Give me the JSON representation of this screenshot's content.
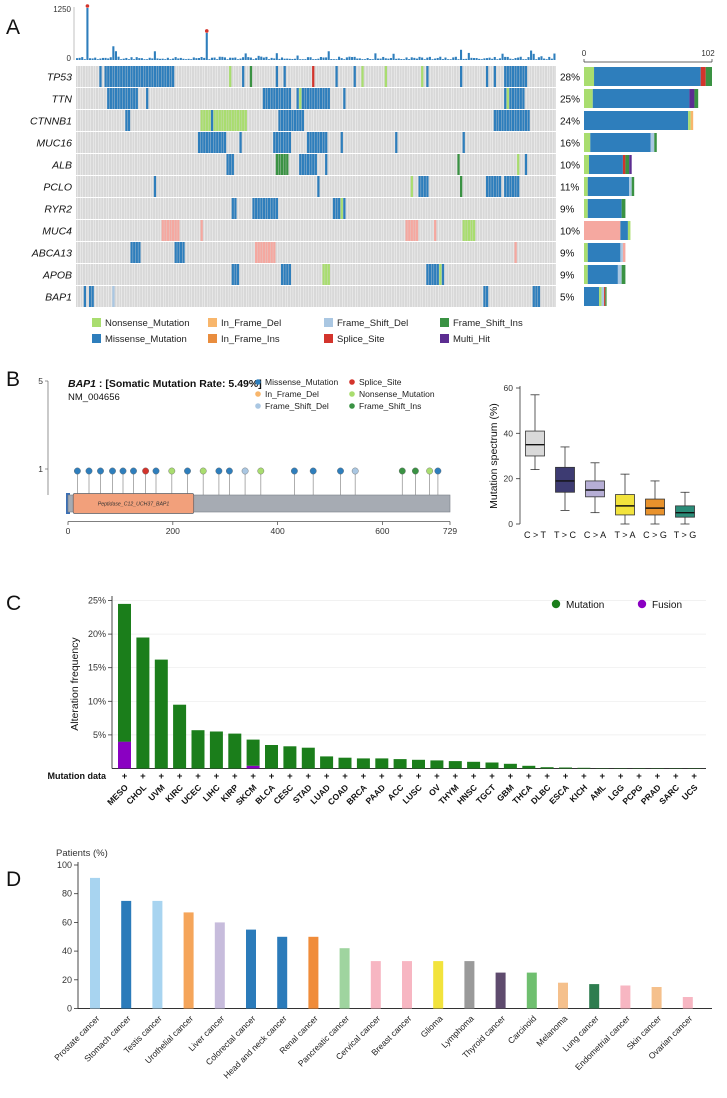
{
  "panel_labels": {
    "a": "A",
    "b": "B",
    "c": "C",
    "d": "D"
  },
  "mut_colors": {
    "missense": "#2e7ebc",
    "nonsense": "#a9dd6f",
    "inframe_del": "#f8b66c",
    "inframe_ins": "#e98d3e",
    "frameshift_del": "#aac7e2",
    "frameshift_ins": "#3a9243",
    "splice": "#d3342c",
    "multi": "#5c2d91",
    "salmon": "#f5a8a0"
  },
  "chart_data": [
    {
      "name": "tmb_per_sample",
      "type": "bar",
      "ylim": [
        0,
        1250
      ],
      "ylabel_ticks": [
        "1250",
        "0"
      ],
      "n_samples": 185,
      "bar_color": "#2e7ebc",
      "seed": 11,
      "spikes": [
        {
          "i": 4,
          "v": 1250,
          "dot": "#d3342c"
        },
        {
          "i": 14,
          "v": 330
        },
        {
          "i": 50,
          "v": 650,
          "dot": "#d3342c"
        },
        {
          "i": 97,
          "v": 210
        },
        {
          "i": 122,
          "v": 150
        },
        {
          "i": 151,
          "v": 170
        }
      ]
    },
    {
      "name": "oncoprint",
      "type": "heatmap",
      "background": "#d8d8d8",
      "right_axis": {
        "ticks": [
          "0",
          "102"
        ],
        "max": 102
      },
      "genes": [
        {
          "gene": "TP53",
          "percent": "28%",
          "pct": 28,
          "mix": [
            [
              "nonsense",
              8
            ],
            [
              "missense",
              85
            ],
            [
              "splice",
              4
            ],
            [
              "frameshift_ins",
              5
            ]
          ]
        },
        {
          "gene": "TTN",
          "percent": "25%",
          "pct": 25,
          "mix": [
            [
              "nonsense",
              7
            ],
            [
              "missense",
              77
            ],
            [
              "multi",
              4
            ],
            [
              "frameshift_ins",
              3
            ]
          ]
        },
        {
          "gene": "CTNNB1",
          "percent": "24%",
          "pct": 24,
          "mix": [
            [
              "missense",
              83
            ],
            [
              "nonsense",
              2
            ],
            [
              "inframe_del",
              2
            ]
          ]
        },
        {
          "gene": "MUC16",
          "percent": "16%",
          "pct": 16,
          "mix": [
            [
              "nonsense",
              5
            ],
            [
              "missense",
              48
            ],
            [
              "frameshift_del",
              3
            ],
            [
              "frameshift_ins",
              2
            ]
          ]
        },
        {
          "gene": "ALB",
          "percent": "10%",
          "pct": 10,
          "mix": [
            [
              "nonsense",
              4
            ],
            [
              "missense",
              27
            ],
            [
              "splice",
              2
            ],
            [
              "frameshift_ins",
              3
            ],
            [
              "multi",
              2
            ]
          ]
        },
        {
          "gene": "PCLO",
          "percent": "11%",
          "pct": 11,
          "mix": [
            [
              "nonsense",
              3
            ],
            [
              "missense",
              33
            ],
            [
              "frameshift_del",
              2
            ],
            [
              "frameshift_ins",
              2
            ]
          ]
        },
        {
          "gene": "RYR2",
          "percent": "9%",
          "pct": 9,
          "mix": [
            [
              "nonsense",
              3
            ],
            [
              "missense",
              27
            ],
            [
              "frameshift_ins",
              3
            ]
          ]
        },
        {
          "gene": "MUC4",
          "percent": "10%",
          "pct": 10,
          "mix": [
            [
              "salmon",
              29
            ],
            [
              "missense",
              6
            ],
            [
              "nonsense",
              2
            ]
          ]
        },
        {
          "gene": "ABCA13",
          "percent": "9%",
          "pct": 9,
          "mix": [
            [
              "nonsense",
              3
            ],
            [
              "missense",
              26
            ],
            [
              "frameshift_del",
              2
            ],
            [
              "salmon",
              2
            ]
          ]
        },
        {
          "gene": "APOB",
          "percent": "9%",
          "pct": 9,
          "mix": [
            [
              "nonsense",
              3
            ],
            [
              "missense",
              24
            ],
            [
              "frameshift_del",
              3
            ],
            [
              "frameshift_ins",
              3
            ]
          ]
        },
        {
          "gene": "BAP1",
          "percent": "5%",
          "pct": 5,
          "mix": [
            [
              "missense",
              12
            ],
            [
              "nonsense",
              2
            ],
            [
              "frameshift_del",
              2
            ],
            [
              "splice",
              1
            ],
            [
              "frameshift_ins",
              1
            ]
          ]
        }
      ],
      "legend_rows": [
        [
          {
            "label": "Nonsense_Mutation",
            "key": "nonsense"
          },
          {
            "label": "In_Frame_Del",
            "key": "inframe_del"
          },
          {
            "label": "Frame_Shift_Del",
            "key": "frameshift_del"
          },
          {
            "label": "Frame_Shift_Ins",
            "key": "frameshift_ins"
          }
        ],
        [
          {
            "label": "Missense_Mutation",
            "key": "missense"
          },
          {
            "label": "In_Frame_Ins",
            "key": "inframe_ins"
          },
          {
            "label": "Splice_Site",
            "key": "splice"
          },
          {
            "label": "Multi_Hit",
            "key": "multi"
          }
        ]
      ]
    },
    {
      "name": "bap1_lollipop",
      "type": "scatter",
      "title_gene": "BAP1",
      "title_rest": " : [Somatic Mutation Rate: 5.49%]",
      "accession": "NM_004656",
      "y_ticks": [
        "5",
        "1"
      ],
      "protein_length": 729,
      "x_ticks": [
        0,
        200,
        400,
        600,
        729
      ],
      "domain": {
        "label": "Peptidase_C12_UCH37_BAP1",
        "start": 10,
        "end": 240,
        "color": "#f2a07b"
      },
      "points": [
        {
          "pos": 18,
          "c": "missense"
        },
        {
          "pos": 40,
          "c": "missense"
        },
        {
          "pos": 62,
          "c": "missense"
        },
        {
          "pos": 85,
          "c": "missense"
        },
        {
          "pos": 105,
          "c": "missense"
        },
        {
          "pos": 125,
          "c": "missense"
        },
        {
          "pos": 148,
          "c": "splice"
        },
        {
          "pos": 168,
          "c": "missense"
        },
        {
          "pos": 198,
          "c": "nonsense"
        },
        {
          "pos": 228,
          "c": "missense"
        },
        {
          "pos": 258,
          "c": "nonsense"
        },
        {
          "pos": 288,
          "c": "missense"
        },
        {
          "pos": 308,
          "c": "missense"
        },
        {
          "pos": 338,
          "c": "frameshift_del"
        },
        {
          "pos": 368,
          "c": "nonsense"
        },
        {
          "pos": 432,
          "c": "missense"
        },
        {
          "pos": 468,
          "c": "missense"
        },
        {
          "pos": 520,
          "c": "missense"
        },
        {
          "pos": 548,
          "c": "frameshift_del"
        },
        {
          "pos": 638,
          "c": "frameshift_ins"
        },
        {
          "pos": 663,
          "c": "frameshift_ins"
        },
        {
          "pos": 690,
          "c": "nonsense"
        },
        {
          "pos": 706,
          "c": "missense"
        }
      ],
      "legend": [
        [
          {
            "label": "Missense_Mutation",
            "key": "missense"
          },
          {
            "label": "Splice_Site",
            "key": "splice"
          }
        ],
        [
          {
            "label": "In_Frame_Del",
            "key": "inframe_del"
          },
          {
            "label": "Nonsense_Mutation",
            "key": "nonsense"
          }
        ],
        [
          {
            "label": "Frame_Shift_Del",
            "key": "frameshift_del"
          },
          {
            "label": "Frame_Shift_Ins",
            "key": "frameshift_ins"
          }
        ]
      ]
    },
    {
      "name": "mutation_spectrum",
      "type": "box",
      "ylabel": "Mutation spectrum (%)",
      "yticks": [
        0,
        20,
        40,
        60
      ],
      "ylim": [
        0,
        62
      ],
      "categories": [
        "C > T",
        "T > C",
        "C > A",
        "T > A",
        "C > G",
        "T > G"
      ],
      "box_colors": [
        "#d9d9d9",
        "#3d3b72",
        "#b6aed5",
        "#f2e33c",
        "#e8922c",
        "#2a8c78"
      ],
      "stats": [
        [
          24,
          30,
          35,
          41,
          57
        ],
        [
          6,
          14,
          19,
          25,
          34
        ],
        [
          5,
          12,
          15,
          19,
          27
        ],
        [
          0,
          4,
          8,
          13,
          22
        ],
        [
          0,
          4,
          7,
          11,
          19
        ],
        [
          0,
          3,
          5,
          8,
          14
        ]
      ]
    },
    {
      "name": "alteration_frequency",
      "type": "bar",
      "ylabel": "Alteration frequency",
      "yticks": [
        "5%",
        "10%",
        "15%",
        "20%",
        "25%"
      ],
      "ylim": [
        0,
        26
      ],
      "row_label": "Mutation data",
      "legend": [
        {
          "label": "Mutation",
          "color": "#1b7e1b"
        },
        {
          "label": "Fusion",
          "color": "#8a00c2"
        }
      ],
      "categories": [
        "MESO",
        "CHOL",
        "UVM",
        "KIRC",
        "UCEC",
        "LIHC",
        "KIRP",
        "SKCM",
        "BLCA",
        "CESC",
        "STAD",
        "LUAD",
        "COAD",
        "BRCA",
        "PAAD",
        "ACC",
        "LUSC",
        "OV",
        "THYM",
        "HNSC",
        "TGCT",
        "GBM",
        "THCA",
        "DLBC",
        "ESCA",
        "KICH",
        "AML",
        "LGG",
        "PCPG",
        "PRAD",
        "SARC",
        "UCS"
      ],
      "mutation": [
        20.5,
        19.5,
        16.2,
        9.5,
        5.7,
        5.5,
        5.2,
        3.9,
        3.5,
        3.3,
        3.1,
        1.8,
        1.6,
        1.5,
        1.5,
        1.4,
        1.3,
        1.2,
        1.1,
        1.0,
        0.9,
        0.7,
        0.4,
        0.2,
        0.15,
        0.1,
        0.05,
        0.05,
        0.05,
        0.05,
        0.05,
        0.05
      ],
      "fusion": [
        4.0,
        0,
        0,
        0,
        0,
        0,
        0,
        0.4,
        0,
        0,
        0,
        0,
        0,
        0,
        0,
        0,
        0,
        0,
        0,
        0,
        0,
        0,
        0,
        0,
        0,
        0,
        0,
        0,
        0,
        0,
        0,
        0
      ],
      "mutation_data": [
        "+",
        "+",
        "+",
        "+",
        "+",
        "+",
        "+",
        "+",
        "+",
        "+",
        "+",
        "+",
        "+",
        "+",
        "+",
        "+",
        "+",
        "+",
        "+",
        "+",
        "+",
        "+",
        "+",
        "+",
        "+",
        "+",
        "+",
        "+",
        "+",
        "+",
        "+",
        "+"
      ]
    },
    {
      "name": "patients_percent",
      "type": "bar",
      "title": "Patients (%)",
      "yticks": [
        0,
        20,
        40,
        60,
        80,
        100
      ],
      "ylim": [
        0,
        100
      ],
      "categories": [
        "Prostate cancer",
        "Stomach cancer",
        "Testis cancer",
        "Urothelial cancer",
        "Liver cancer",
        "Colorectal cancer",
        "Head and neck cancer",
        "Renal cancer",
        "Pancreatic cancer",
        "Cervical cancer",
        "Breast cancer",
        "Glioma",
        "Lymphoma",
        "Thyroid cancer",
        "Carcinoid",
        "Melanoma",
        "Lung cancer",
        "Endometrial cancer",
        "Skin cancer",
        "Ovarian cancer"
      ],
      "values": [
        91,
        75,
        75,
        67,
        60,
        55,
        50,
        50,
        42,
        33,
        33,
        33,
        33,
        25,
        25,
        18,
        17,
        16,
        15,
        8
      ],
      "colors": [
        "#a8d4f0",
        "#2b7bba",
        "#a8d4f0",
        "#f5a55a",
        "#c7bcdc",
        "#2b7bba",
        "#2b7bba",
        "#f08c3a",
        "#9fd49f",
        "#f7b6c2",
        "#f7b6c2",
        "#f2e33c",
        "#9a9a9a",
        "#5f4b6e",
        "#6fbf6f",
        "#f5c08c",
        "#2e7d4f",
        "#f7b6c2",
        "#f5c08c",
        "#f7b6c2"
      ]
    }
  ]
}
